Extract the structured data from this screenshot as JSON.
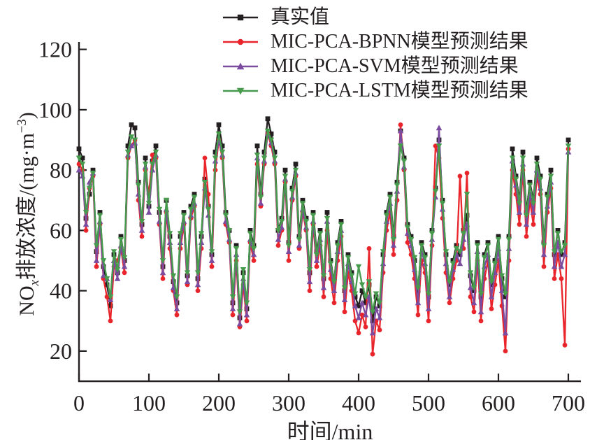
{
  "figure": {
    "background": "#ffffff",
    "text_color": "#231f20",
    "axis_color": "#231f20"
  },
  "labels": {
    "y_base": "NO",
    "y_sub": "x",
    "y_mid": "排放浓度/(mg·m",
    "y_sup": "−3",
    "y_close": ")",
    "ylabel_full": "NOx排放浓度/(mg·m−3)"
  },
  "chart_data": {
    "type": "line",
    "title": "",
    "xlabel": "时间/min",
    "ylabel": "NOx排放浓度/(mg·m−3)",
    "xlim": [
      0,
      700
    ],
    "ylim": [
      10,
      122
    ],
    "x_ticks": [
      0,
      100,
      200,
      300,
      400,
      500,
      600,
      700
    ],
    "y_ticks": [
      20,
      40,
      60,
      80,
      100,
      120
    ],
    "grid": false,
    "legend_position": "top",
    "x_start": 0,
    "x_step": 5,
    "series": [
      {
        "name": "真实值",
        "color": "#231f20",
        "marker": "square",
        "values": [
          87,
          84,
          64,
          72,
          80,
          53,
          66,
          48,
          42,
          35,
          52,
          46,
          58,
          50,
          88,
          95,
          94,
          76,
          62,
          84,
          68,
          83,
          88,
          66,
          48,
          70,
          58,
          43,
          36,
          58,
          66,
          45,
          68,
          72,
          44,
          58,
          77,
          68,
          52,
          86,
          95,
          88,
          66,
          60,
          36,
          55,
          31,
          46,
          34,
          60,
          55,
          88,
          72,
          86,
          97,
          92,
          86,
          60,
          64,
          80,
          56,
          74,
          82,
          58,
          70,
          64,
          46,
          66,
          53,
          60,
          44,
          66,
          50,
          43,
          56,
          63,
          40,
          52,
          46,
          38,
          35,
          40,
          36,
          42,
          30,
          38,
          35,
          52,
          66,
          72,
          58,
          76,
          93,
          84,
          62,
          58,
          50,
          40,
          56,
          52,
          38,
          60,
          74,
          90,
          70,
          52,
          42,
          50,
          55,
          52,
          60,
          65,
          45,
          40,
          56,
          38,
          52,
          56,
          42,
          50,
          58,
          44,
          38,
          58,
          87,
          78,
          70,
          86,
          66,
          76,
          70,
          84,
          78,
          56,
          72,
          80,
          52,
          60,
          52,
          56,
          90
        ]
      },
      {
        "name": "MIC-PCA-BPNN模型预测结果",
        "color": "#e9252b",
        "marker": "circle",
        "values": [
          82,
          80,
          60,
          74,
          78,
          48,
          62,
          44,
          38,
          30,
          48,
          50,
          54,
          46,
          84,
          88,
          90,
          70,
          58,
          80,
          72,
          85,
          84,
          62,
          44,
          66,
          54,
          40,
          32,
          54,
          62,
          42,
          64,
          68,
          40,
          54,
          84,
          72,
          48,
          80,
          90,
          84,
          62,
          56,
          32,
          50,
          28,
          42,
          30,
          56,
          50,
          82,
          68,
          82,
          92,
          88,
          82,
          55,
          60,
          76,
          50,
          70,
          78,
          54,
          66,
          60,
          40,
          62,
          48,
          55,
          38,
          60,
          44,
          36,
          50,
          58,
          33,
          46,
          40,
          30,
          26,
          32,
          28,
          54,
          19,
          30,
          27,
          46,
          60,
          66,
          52,
          70,
          95,
          80,
          56,
          52,
          44,
          32,
          50,
          46,
          30,
          55,
          88,
          84,
          64,
          46,
          36,
          44,
          50,
          78,
          54,
          79,
          38,
          33,
          50,
          30,
          44,
          50,
          34,
          42,
          50,
          35,
          20,
          50,
          80,
          72,
          62,
          80,
          58,
          70,
          62,
          78,
          72,
          48,
          66,
          74,
          44,
          52,
          44,
          22,
          87
        ]
      },
      {
        "name": "MIC-PCA-SVM模型预测结果",
        "color": "#7a4b9e",
        "marker": "triangle-up",
        "values": [
          80,
          78,
          62,
          76,
          79,
          50,
          63,
          45,
          44,
          37,
          50,
          44,
          55,
          48,
          85,
          88,
          89,
          72,
          60,
          81,
          66,
          80,
          85,
          63,
          46,
          67,
          56,
          41,
          34,
          56,
          63,
          43,
          65,
          69,
          42,
          56,
          74,
          65,
          50,
          83,
          90,
          85,
          63,
          57,
          34,
          52,
          29,
          44,
          32,
          57,
          52,
          84,
          69,
          83,
          92,
          89,
          83,
          57,
          61,
          77,
          53,
          71,
          79,
          55,
          67,
          61,
          43,
          63,
          50,
          57,
          41,
          63,
          47,
          40,
          53,
          60,
          37,
          49,
          43,
          35,
          31,
          36,
          32,
          38,
          26,
          34,
          31,
          49,
          63,
          69,
          55,
          73,
          93,
          81,
          59,
          55,
          47,
          36,
          53,
          49,
          34,
          57,
          71,
          94,
          67,
          49,
          38,
          47,
          52,
          49,
          57,
          62,
          41,
          36,
          53,
          33,
          48,
          52,
          38,
          46,
          54,
          40,
          26,
          54,
          83,
          75,
          66,
          82,
          62,
          72,
          66,
          80,
          74,
          52,
          68,
          76,
          48,
          56,
          48,
          52,
          86
        ]
      },
      {
        "name": "MIC-PCA-LSTM模型预测结果",
        "color": "#479b4d",
        "marker": "triangle-down",
        "values": [
          84,
          82,
          66,
          74,
          79,
          55,
          65,
          50,
          44,
          38,
          53,
          47,
          57,
          51,
          86,
          91,
          90,
          75,
          63,
          82,
          69,
          82,
          86,
          67,
          50,
          70,
          59,
          45,
          38,
          59,
          65,
          46,
          67,
          71,
          46,
          59,
          76,
          67,
          53,
          84,
          92,
          86,
          65,
          60,
          38,
          54,
          33,
          47,
          36,
          59,
          54,
          85,
          71,
          84,
          93,
          90,
          84,
          60,
          63,
          78,
          55,
          73,
          80,
          57,
          69,
          63,
          47,
          65,
          52,
          59,
          45,
          64,
          49,
          43,
          55,
          62,
          41,
          51,
          45,
          39,
          48,
          42,
          38,
          43,
          33,
          39,
          36,
          53,
          65,
          71,
          57,
          75,
          88,
          83,
          61,
          57,
          51,
          41,
          55,
          51,
          39,
          59,
          73,
          88,
          69,
          53,
          43,
          49,
          54,
          53,
          59,
          72,
          46,
          41,
          55,
          39,
          51,
          55,
          43,
          49,
          57,
          45,
          39,
          57,
          84,
          77,
          69,
          84,
          65,
          75,
          69,
          82,
          77,
          55,
          71,
          78,
          53,
          59,
          53,
          55,
          88
        ]
      }
    ]
  }
}
